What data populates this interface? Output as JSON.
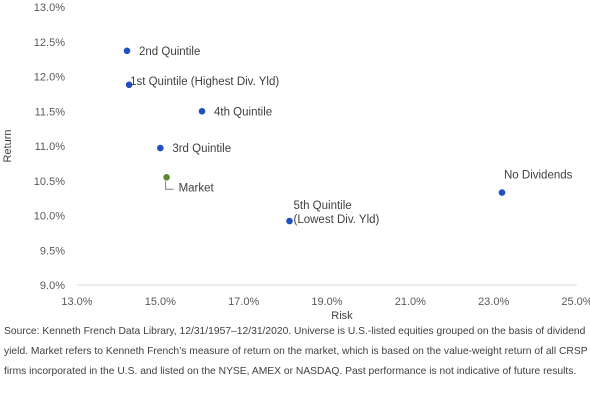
{
  "chart_data": {
    "type": "scatter",
    "xlabel": "Risk",
    "ylabel": "Return",
    "xlim": [
      13.0,
      25.0
    ],
    "ylim": [
      9.0,
      13.0
    ],
    "xticks": [
      13.0,
      15.0,
      17.0,
      19.0,
      21.0,
      23.0,
      25.0
    ],
    "yticks": [
      9.0,
      9.5,
      10.0,
      10.5,
      11.0,
      11.5,
      12.0,
      12.5,
      13.0
    ],
    "xtick_labels": [
      "13.0%",
      "15.0%",
      "17.0%",
      "19.0%",
      "21.0%",
      "23.0%",
      "25.0%"
    ],
    "ytick_labels": [
      "9.0%",
      "9.5%",
      "10.0%",
      "10.5%",
      "11.0%",
      "11.5%",
      "12.0%",
      "12.5%",
      "13.0%"
    ],
    "grid": false,
    "points": [
      {
        "label": "2nd Quintile",
        "x": 14.2,
        "y": 12.37,
        "color": "#1f4fc1"
      },
      {
        "label": "1st Quintile  (Highest Div. Yld)",
        "x": 14.25,
        "y": 11.88,
        "color": "#1f4fc1"
      },
      {
        "label": "4th Quintile",
        "x": 16.0,
        "y": 11.5,
        "color": "#1f4fc1"
      },
      {
        "label": "3rd Quintile",
        "x": 15.0,
        "y": 10.97,
        "color": "#1f4fc1"
      },
      {
        "label": "Market",
        "x": 15.15,
        "y": 10.55,
        "color": "#5b8a2e"
      },
      {
        "label": [
          "5th Quintile",
          "(Lowest Div. Yld)"
        ],
        "x": 18.1,
        "y": 9.92,
        "color": "#1f4fc1"
      },
      {
        "label": "No Dividends",
        "x": 23.2,
        "y": 10.33,
        "color": "#1f4fc1"
      }
    ]
  },
  "footnote": "Source: Kenneth French Data Library, 12/31/1957–12/31/2020. Universe is U.S.-listed equities grouped on the basis of dividend yield. Market refers to Kenneth French’s measure of return on the market, which is based on the value-weight return of all CRSP firms incorporated in the U.S. and listed on the NYSE, AMEX or NASDAQ. Past performance is not indicative of future results."
}
